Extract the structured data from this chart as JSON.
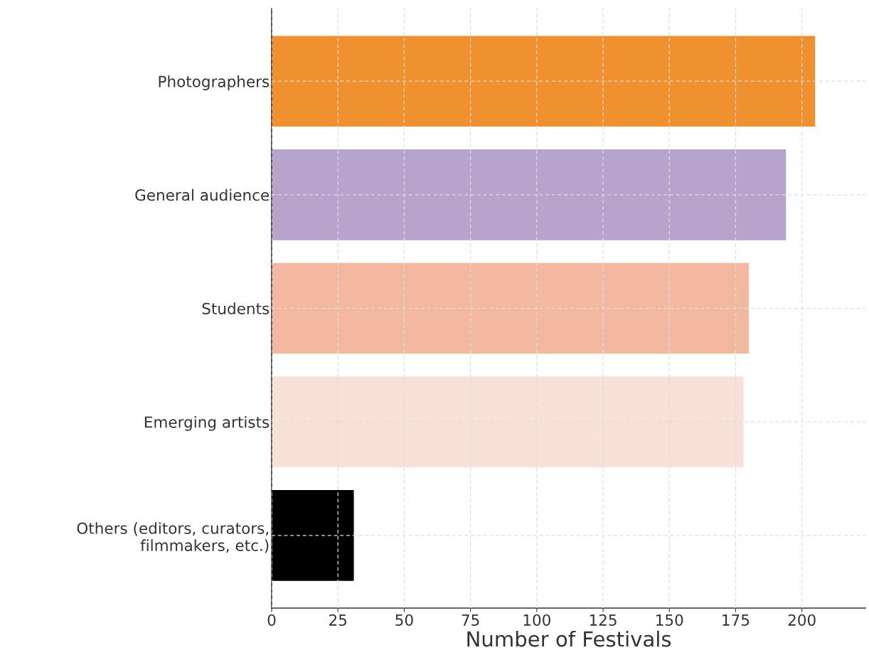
{
  "chart_data": {
    "type": "bar",
    "orientation": "horizontal",
    "xlabel": "Number of Festivals",
    "categories": [
      "Photographers",
      "General audience",
      "Students",
      "Emerging artists",
      "Others (editors, curators,\nfilmmakers, etc.)"
    ],
    "values": [
      205,
      194,
      180,
      178,
      31
    ],
    "colors": [
      "#ef912f",
      "#b7a3cc",
      "#f2b8a0",
      "#f8e1d6",
      "#000000"
    ],
    "xlim": [
      0,
      224
    ],
    "xticks": [
      0,
      25,
      50,
      75,
      100,
      125,
      150,
      175,
      200
    ],
    "grid": true
  }
}
